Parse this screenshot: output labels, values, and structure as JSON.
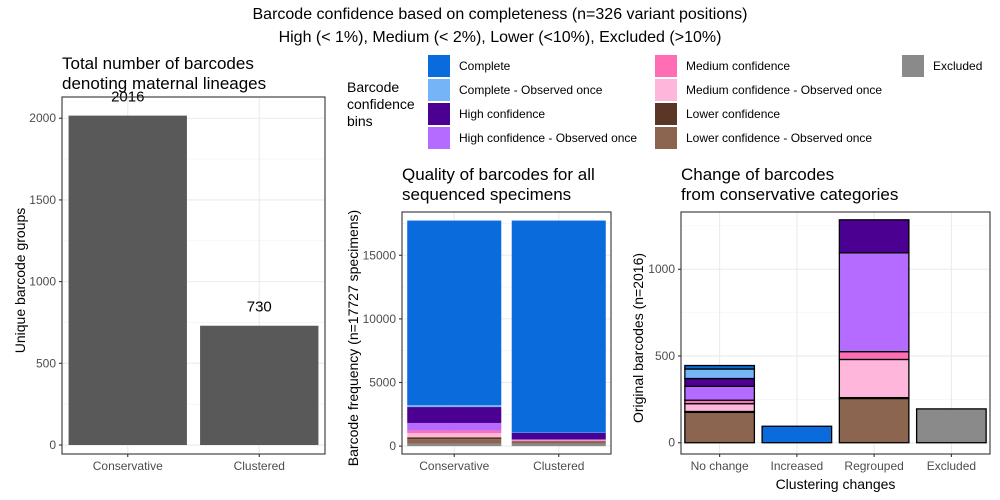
{
  "figure": {
    "title_line1": "Barcode confidence based on completeness (n=326 variant positions)",
    "title_line2": "High (< 1%), Medium (< 2%), Lower (<10%), Excluded (>10%)"
  },
  "legend": {
    "title_lines": [
      "Barcode",
      "confidence",
      "bins"
    ],
    "entries": [
      {
        "label": "Complete",
        "color": "#0A6CDC"
      },
      {
        "label": "Complete - Observed once",
        "color": "#74B4F7"
      },
      {
        "label": "High confidence",
        "color": "#4B0092"
      },
      {
        "label": "High confidence - Observed once",
        "color": "#B56BFF"
      },
      {
        "label": "Medium confidence",
        "color": "#FF6EB4"
      },
      {
        "label": "Medium confidence - Observed once",
        "color": "#FFB6DB"
      },
      {
        "label": "Lower confidence",
        "color": "#5A3626"
      },
      {
        "label": "Lower confidence - Observed once",
        "color": "#8C6550"
      },
      {
        "label": "Excluded",
        "color": "#8A8A8A"
      }
    ]
  },
  "chart_data": [
    {
      "type": "bar",
      "title_lines": [
        "Total number of barcodes",
        "denoting maternal lineages"
      ],
      "xlabel": "",
      "ylabel": "Unique barcode groups",
      "categories": [
        "Conservative",
        "Clustered"
      ],
      "values": [
        2016,
        730
      ],
      "data_labels": [
        "2016",
        "730"
      ],
      "ylim": [
        -55,
        2130
      ],
      "yticks": [
        0,
        500,
        1000,
        1500,
        2000
      ],
      "bar_color": "#595959",
      "grid": true
    },
    {
      "type": "bar",
      "stacked": true,
      "title_lines": [
        "Quality of barcodes for all",
        "sequenced specimens"
      ],
      "xlabel": "",
      "ylabel": "Barcode frequency (n=17727 specimens)",
      "categories": [
        "Conservative",
        "Clustered"
      ],
      "ylim": [
        -620,
        18400
      ],
      "yticks": [
        0,
        5000,
        10000,
        15000
      ],
      "grid": true,
      "series": [
        {
          "name": "Excluded",
          "color": "#8A8A8A",
          "values": [
            200,
            200
          ]
        },
        {
          "name": "Lower confidence - Observed once",
          "color": "#8C6550",
          "values": [
            350,
            130
          ]
        },
        {
          "name": "Lower confidence",
          "color": "#5A3626",
          "values": [
            150,
            60
          ]
        },
        {
          "name": "Medium confidence - Observed once",
          "color": "#FFB6DB",
          "values": [
            320,
            50
          ]
        },
        {
          "name": "Medium confidence",
          "color": "#FF6EB4",
          "values": [
            200,
            40
          ]
        },
        {
          "name": "High confidence - Observed once",
          "color": "#B56BFF",
          "values": [
            600,
            50
          ]
        },
        {
          "name": "High confidence",
          "color": "#4B0092",
          "values": [
            1250,
            530
          ]
        },
        {
          "name": "Complete - Observed once",
          "color": "#74B4F7",
          "values": [
            150,
            10
          ]
        },
        {
          "name": "Complete",
          "color": "#0A6CDC",
          "values": [
            14507,
            16657
          ]
        }
      ]
    },
    {
      "type": "bar",
      "stacked": true,
      "title_lines": [
        "Change of barcodes",
        "from conservative categories"
      ],
      "xlabel": "Clustering changes",
      "ylabel": "Original barcodes (n=2016)",
      "categories": [
        "No change",
        "Increased",
        "Regrouped",
        "Excluded"
      ],
      "ylim": [
        -65,
        1330
      ],
      "yticks": [
        0,
        500,
        1000
      ],
      "grid": true,
      "series": [
        {
          "name": "Excluded",
          "color": "#8A8A8A",
          "values": [
            0,
            0,
            0,
            195
          ]
        },
        {
          "name": "Lower confidence - Observed once",
          "color": "#8C6550",
          "values": [
            175,
            0,
            255,
            0
          ]
        },
        {
          "name": "Lower confidence",
          "color": "#5A3626",
          "values": [
            5,
            0,
            5,
            0
          ]
        },
        {
          "name": "Medium confidence - Observed once",
          "color": "#FFB6DB",
          "values": [
            45,
            0,
            220,
            0
          ]
        },
        {
          "name": "Medium confidence",
          "color": "#FF6EB4",
          "values": [
            20,
            0,
            45,
            0
          ]
        },
        {
          "name": "High confidence - Observed once",
          "color": "#B56BFF",
          "values": [
            80,
            0,
            570,
            0
          ]
        },
        {
          "name": "High confidence",
          "color": "#4B0092",
          "values": [
            45,
            0,
            190,
            0
          ]
        },
        {
          "name": "Complete - Observed once",
          "color": "#74B4F7",
          "values": [
            55,
            0,
            0,
            0
          ]
        },
        {
          "name": "Complete",
          "color": "#0A6CDC",
          "values": [
            20,
            95,
            0,
            0
          ]
        }
      ]
    }
  ]
}
